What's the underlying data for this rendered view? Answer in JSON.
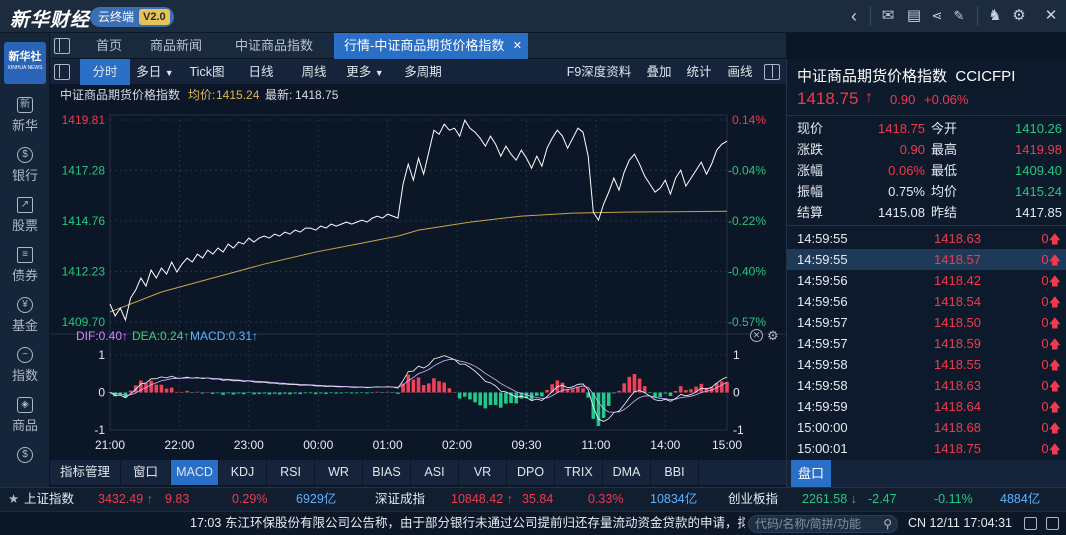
{
  "brand": {
    "logo": "新华财经",
    "tag": "云终端",
    "version": "V2.0"
  },
  "nav": {
    "tabs": [
      "首页",
      "商品新闻",
      "中证商品指数",
      "行情-中证商品期货价格指数"
    ],
    "close": "✕"
  },
  "rail": {
    "app": "新华社",
    "app_sub": "XINHUA NEWS",
    "items": [
      "新华",
      "银行",
      "股票",
      "债券",
      "基金",
      "指数",
      "商品"
    ]
  },
  "toolbar": {
    "items": [
      "分时",
      "多日",
      "Tick图",
      "日线",
      "周线",
      "更多",
      "多周期"
    ],
    "right": [
      "F9深度资料",
      "叠加",
      "统计",
      "画线"
    ]
  },
  "info": {
    "name": "中证商品期货价格指数",
    "avg_label": "均价:",
    "avg": "1415.24",
    "last_label": "最新:",
    "last": "1418.75"
  },
  "macd": {
    "dif": "DIF:0.40↑",
    "dea": "DEA:0.24↑",
    "macd": "MACD:0.31↑"
  },
  "panel": {
    "title": "中证商品期货价格指数",
    "code": "CCICFPI",
    "price": "1418.75",
    "arrow": "↑",
    "change": "0.90",
    "pct": "+0.06%",
    "stats": [
      {
        "l1": "现价",
        "v1": "1418.75",
        "c1": "red",
        "l2": "今开",
        "v2": "1410.26",
        "c2": "green"
      },
      {
        "l1": "涨跌",
        "v1": "0.90",
        "c1": "red",
        "l2": "最高",
        "v2": "1419.98",
        "c2": "red"
      },
      {
        "l1": "涨幅",
        "v1": "0.06%",
        "c1": "red",
        "l2": "最低",
        "v2": "1409.40",
        "c2": "green"
      },
      {
        "l1": "振幅",
        "v1": "0.75%",
        "c1": "white",
        "l2": "均价",
        "v2": "1415.24",
        "c2": "green"
      },
      {
        "l1": "结算",
        "v1": "1415.08",
        "c1": "white",
        "l2": "昨结",
        "v2": "1417.85",
        "c2": "white"
      }
    ],
    "ticks": [
      {
        "t": "14:59:55",
        "p": "1418.63",
        "v": "0"
      },
      {
        "t": "14:59:55",
        "p": "1418.57",
        "v": "0"
      },
      {
        "t": "14:59:56",
        "p": "1418.42",
        "v": "0"
      },
      {
        "t": "14:59:56",
        "p": "1418.54",
        "v": "0"
      },
      {
        "t": "14:59:57",
        "p": "1418.50",
        "v": "0"
      },
      {
        "t": "14:59:57",
        "p": "1418.59",
        "v": "0"
      },
      {
        "t": "14:59:58",
        "p": "1418.55",
        "v": "0"
      },
      {
        "t": "14:59:58",
        "p": "1418.63",
        "v": "0"
      },
      {
        "t": "14:59:59",
        "p": "1418.64",
        "v": "0"
      },
      {
        "t": "15:00:00",
        "p": "1418.68",
        "v": "0"
      },
      {
        "t": "15:00:01",
        "p": "1418.75",
        "v": "0"
      }
    ],
    "tab": "盘口"
  },
  "bottom_tabs": [
    "指标管理",
    "窗口",
    "MACD",
    "KDJ",
    "RSI",
    "WR",
    "BIAS",
    "ASI",
    "VR",
    "DPO",
    "TRIX",
    "DMA",
    "BBI"
  ],
  "indices": [
    {
      "name": "上证指数",
      "value": "3432.49",
      "arrow": "↑",
      "chg": "9.83",
      "pct": "0.29%",
      "amt": "6929亿",
      "cls": "red"
    },
    {
      "name": "深证成指",
      "value": "10848.42",
      "arrow": "↑",
      "chg": "35.84",
      "pct": "0.33%",
      "amt": "10834亿",
      "cls": "red"
    },
    {
      "name": "创业板指",
      "value": "2261.58",
      "arrow": "↓",
      "chg": "-2.47",
      "pct": "-0.11%",
      "amt": "4884亿",
      "cls": "green"
    }
  ],
  "news": {
    "time": "17:03",
    "text": "东江环保股份有限公司公告称，由于部分银行未通过公司提前归还存量流动资金贷款的申请，拟变",
    "search_placeholder": "代码/名称/简拼/功能",
    "status": "CN 12/11 17:04:31"
  },
  "chart_data": {
    "type": "line",
    "title": "中证商品期货价格指数",
    "x_ticks": [
      "21:00",
      "22:00",
      "23:00",
      "00:00",
      "01:00",
      "02:00",
      "09:30",
      "11:00",
      "14:00",
      "15:00"
    ],
    "y_ticks": [
      1419.81,
      1417.28,
      1414.76,
      1412.23,
      1409.7
    ],
    "pct_ticks": [
      "0.14%",
      "-0.04%",
      "-0.22%",
      "-0.40%",
      "-0.57%"
    ],
    "ylim": [
      1409.7,
      1419.81
    ],
    "series": [
      {
        "name": "price",
        "x": [
          0,
          1,
          2,
          3,
          4,
          5,
          6,
          7,
          8,
          9,
          10,
          11,
          12,
          13,
          14,
          15,
          16,
          17,
          18,
          19,
          20,
          21,
          22,
          23,
          24,
          25,
          26,
          27,
          28,
          29,
          30,
          31,
          32,
          33,
          34,
          35,
          36,
          37,
          38,
          39,
          40,
          41,
          42,
          43,
          44,
          45,
          46,
          47,
          48,
          49,
          50,
          51,
          52,
          53,
          54,
          55,
          56,
          57,
          58,
          59,
          60,
          61,
          62,
          63,
          64,
          65,
          66,
          67,
          68,
          69,
          70,
          71,
          72,
          73,
          74,
          75,
          76,
          77,
          78,
          79,
          80,
          81,
          82,
          83,
          84,
          85,
          86,
          87,
          88,
          89,
          90,
          91,
          92,
          93,
          94,
          95,
          96,
          97,
          98,
          99,
          100,
          101,
          102,
          103,
          104,
          105,
          106,
          107,
          108,
          109,
          110,
          111,
          112,
          113,
          114,
          115,
          116,
          117,
          118,
          119,
          120
        ],
        "values": [
          1410.6,
          1410.0,
          1410.4,
          1409.8,
          1410.9,
          1411.3,
          1411.9,
          1411.5,
          1412.3,
          1411.9,
          1412.4,
          1412.1,
          1412.7,
          1412.2,
          1412.6,
          1412.9,
          1412.7,
          1413.1,
          1412.9,
          1413.3,
          1413.1,
          1413.4,
          1413.2,
          1413.6,
          1413.4,
          1413.7,
          1413.6,
          1413.9,
          1413.7,
          1413.9,
          1414.0,
          1413.9,
          1414.1,
          1414.0,
          1414.2,
          1414.1,
          1414.3,
          1414.2,
          1414.4,
          1414.4,
          1414.3,
          1414.5,
          1414.4,
          1414.6,
          1414.5,
          1414.6,
          1414.7,
          1414.6,
          1414.7,
          1414.8,
          1414.7,
          1414.9,
          1415.0,
          1414.9,
          1415.1,
          1415.0,
          1414.9,
          1416.6,
          1417.6,
          1416.8,
          1417.9,
          1417.1,
          1418.2,
          1419.3,
          1419.1,
          1419.6,
          1419.3,
          1419.4,
          1419.0,
          1419.8,
          1419.4,
          1419.2,
          1418.9,
          1418.5,
          1419.0,
          1418.6,
          1418.0,
          1418.5,
          1418.1,
          1417.8,
          1418.3,
          1417.9,
          1417.4,
          1418.0,
          1417.5,
          1418.4,
          1418.9,
          1419.3,
          1419.0,
          1418.4,
          1418.9,
          1419.4,
          1419.2,
          1418.0,
          1415.2,
          1414.8,
          1415.6,
          1416.2,
          1416.9,
          1416.3,
          1417.2,
          1417.8,
          1418.1,
          1417.6,
          1417.0,
          1416.6,
          1416.2,
          1416.4,
          1416.8,
          1416.1,
          1416.9,
          1417.3,
          1416.5,
          1416.9,
          1417.3,
          1417.7,
          1417.1,
          1417.6,
          1418.3,
          1418.6,
          1418.75
        ]
      },
      {
        "name": "avg",
        "x": [
          0,
          10,
          20,
          30,
          40,
          50,
          56,
          60,
          70,
          80,
          90,
          100,
          110,
          120
        ],
        "values": [
          1410.2,
          1411.2,
          1411.9,
          1412.6,
          1413.2,
          1413.7,
          1414.0,
          1414.3,
          1414.7,
          1415.0,
          1415.15,
          1415.2,
          1415.22,
          1415.24
        ]
      }
    ],
    "macd": {
      "ylim": [
        -1,
        1
      ],
      "ticks": [
        "1",
        "0",
        "-1"
      ]
    }
  }
}
